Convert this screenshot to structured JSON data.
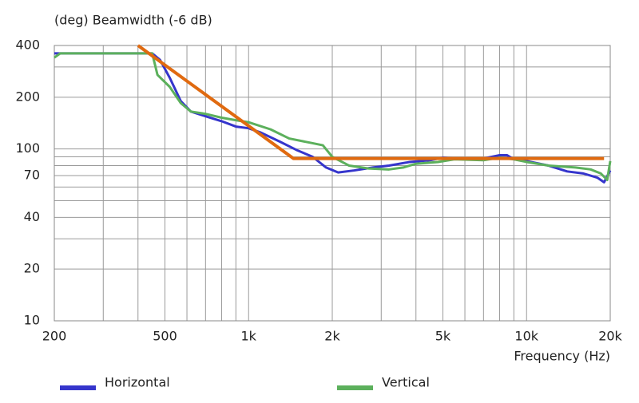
{
  "chart_data": {
    "type": "line",
    "title": "(deg)  Beamwidth (-6 dB)",
    "xlabel": "Frequency  (Hz)",
    "xscale": "log",
    "yscale": "log",
    "grid": true,
    "xlim": [
      200,
      20000
    ],
    "xticks": [
      200,
      500,
      {
        "value": 1000,
        "label": "1k"
      },
      {
        "value": 2000,
        "label": "2k"
      },
      {
        "value": 5000,
        "label": "5k"
      },
      {
        "value": 10000,
        "label": "10k"
      },
      {
        "value": 20000,
        "label": "20k"
      }
    ],
    "xminor": [
      300,
      400,
      600,
      700,
      800,
      900,
      3000,
      4000,
      6000,
      7000,
      8000,
      9000
    ],
    "ylim": [
      10,
      400
    ],
    "yticks": [
      10,
      20,
      40,
      70,
      100,
      200,
      400
    ],
    "yminor": [
      30,
      50,
      60,
      80,
      90,
      300
    ],
    "series": [
      {
        "name": "Horizontal",
        "color": "#3535cc",
        "x": [
          200,
          300,
          400,
          450,
          480,
          520,
          570,
          620,
          700,
          800,
          900,
          1000,
          1100,
          1300,
          1500,
          1700,
          1900,
          2100,
          2400,
          2800,
          3200,
          3800,
          4500,
          5000,
          6000,
          7000,
          8000,
          8500,
          9000,
          10000,
          12000,
          14000,
          16000,
          18000,
          19000,
          20000
        ],
        "values": [
          360,
          360,
          360,
          360,
          330,
          260,
          190,
          165,
          155,
          145,
          135,
          132,
          125,
          110,
          98,
          90,
          78,
          73,
          75,
          78,
          80,
          84,
          86,
          89,
          87,
          88,
          92,
          92,
          87,
          85,
          80,
          74,
          72,
          68,
          64,
          75
        ]
      },
      {
        "name": "Vertical",
        "color": "#5cb05c",
        "x": [
          200,
          210,
          450,
          470,
          520,
          570,
          620,
          700,
          800,
          900,
          1000,
          1200,
          1400,
          1700,
          1850,
          2000,
          2300,
          2700,
          3200,
          3600,
          4000,
          4800,
          5500,
          7000,
          8000,
          9000,
          10000,
          12000,
          15000,
          17000,
          18500,
          19500,
          20000
        ],
        "values": [
          340,
          360,
          360,
          270,
          230,
          185,
          165,
          160,
          152,
          147,
          143,
          130,
          115,
          108,
          105,
          90,
          80,
          77,
          76,
          78,
          82,
          84,
          87,
          86,
          89,
          87,
          84,
          80,
          78,
          76,
          72,
          66,
          85
        ]
      },
      {
        "color": "#e06a10",
        "x": [
          400,
          1450,
          19000
        ],
        "values": [
          400,
          88,
          88
        ]
      }
    ]
  }
}
